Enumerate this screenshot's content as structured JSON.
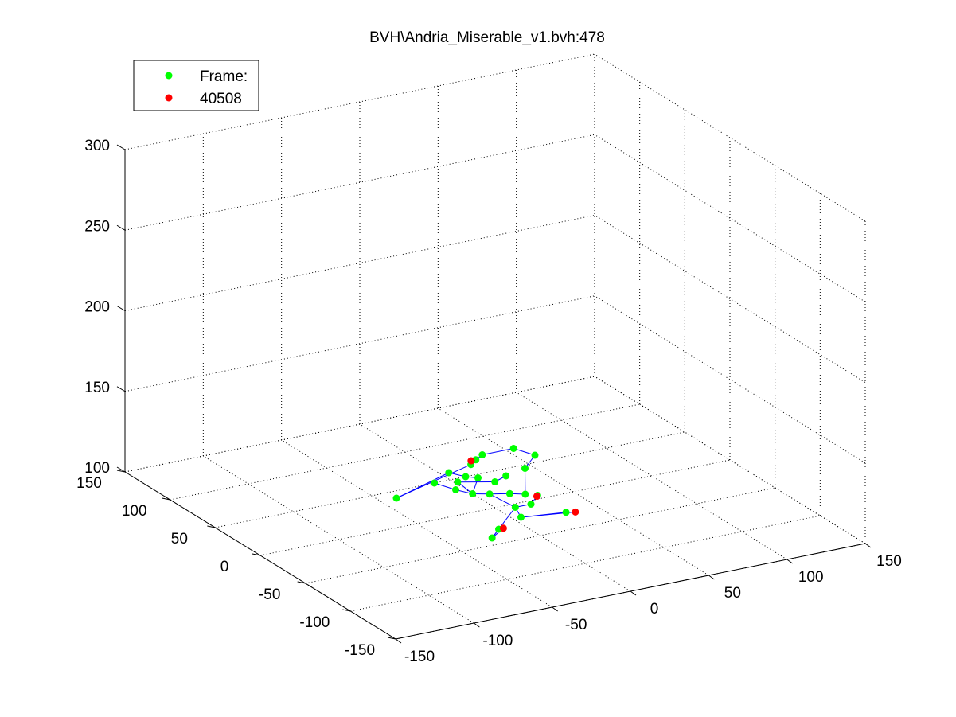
{
  "chart_data": {
    "type": "scatter",
    "title": "BVH\\Andria_Miserable_v1.bvh:478",
    "legend": {
      "placement": "top-left",
      "entries": [
        {
          "label": "Frame:",
          "color": "#00ff00"
        },
        {
          "label": "40508",
          "color": "#ff0000"
        }
      ]
    },
    "axes": {
      "x": {
        "ticks": [
          "-150",
          "-100",
          "-50",
          "0",
          "50",
          "100",
          "150"
        ],
        "range": [
          -150,
          150
        ]
      },
      "y": {
        "ticks": [
          "-150",
          "-100",
          "-50",
          "0",
          "50",
          "100",
          "150"
        ],
        "range": [
          -150,
          150
        ]
      },
      "z": {
        "ticks": [
          "100",
          "150",
          "200",
          "250",
          "300"
        ],
        "range": [
          100,
          300
        ]
      },
      "grid": true,
      "view": "3d"
    },
    "colors": {
      "joint": "#00ff00",
      "end_site": "#ff0000",
      "bone": "#0000ff"
    },
    "skeleton": {
      "joints": [
        [
          10,
          -5,
          100
        ],
        [
          20,
          -5,
          100
        ],
        [
          30,
          5,
          100
        ],
        [
          5,
          -20,
          100
        ],
        [
          -25,
          -40,
          100
        ],
        [
          28,
          -30,
          102
        ],
        [
          -15,
          -30,
          100
        ],
        [
          8,
          20,
          100
        ],
        [
          18,
          15,
          100
        ],
        [
          25,
          10,
          100
        ],
        [
          0,
          25,
          100
        ],
        [
          -5,
          35,
          100
        ],
        [
          -10,
          50,
          100
        ],
        [
          2,
          45,
          100
        ],
        [
          20,
          35,
          100
        ],
        [
          30,
          40,
          100
        ],
        [
          15,
          45,
          100
        ],
        [
          10,
          50,
          100
        ],
        [
          5,
          60,
          100
        ],
        [
          -40,
          40,
          100
        ],
        [
          22,
          65,
          100
        ],
        [
          28,
          70,
          100
        ],
        [
          35,
          75,
          100
        ],
        [
          55,
          75,
          100
        ],
        [
          60,
          60,
          100
        ],
        [
          45,
          45,
          100
        ]
      ],
      "end_sites": [
        [
          29,
          4,
          100
        ],
        [
          34,
          -30,
          101
        ],
        [
          -12,
          -30,
          100
        ],
        [
          25,
          70,
          100
        ]
      ],
      "bones": [
        [
          0,
          1
        ],
        [
          1,
          2
        ],
        [
          2,
          "e0"
        ],
        [
          0,
          3
        ],
        [
          3,
          "e1"
        ],
        [
          3,
          5
        ],
        [
          0,
          4
        ],
        [
          4,
          "e2"
        ],
        [
          4,
          6
        ],
        [
          0,
          7
        ],
        [
          7,
          8
        ],
        [
          8,
          9
        ],
        [
          7,
          10
        ],
        [
          10,
          11
        ],
        [
          11,
          12
        ],
        [
          10,
          13
        ],
        [
          13,
          14
        ],
        [
          14,
          15
        ],
        [
          10,
          16
        ],
        [
          16,
          17
        ],
        [
          17,
          18
        ],
        [
          18,
          19
        ],
        [
          19,
          20
        ],
        [
          20,
          21
        ],
        [
          21,
          "e3"
        ],
        [
          21,
          22
        ],
        [
          22,
          23
        ],
        [
          23,
          24
        ],
        [
          24,
          25
        ],
        [
          25,
          9
        ]
      ]
    }
  }
}
